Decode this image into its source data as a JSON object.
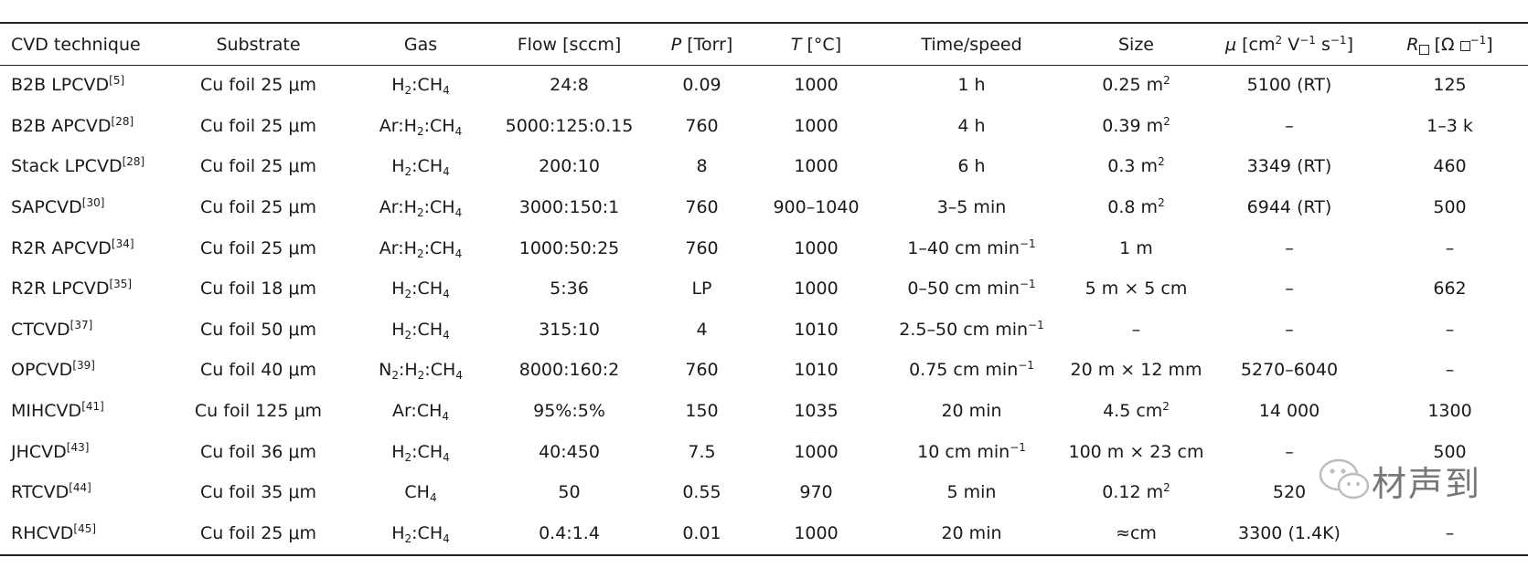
{
  "headers": {
    "technique": "CVD technique",
    "substrate": "Substrate",
    "gas": "Gas",
    "flow": "Flow [sccm]",
    "pressure_sym": "P",
    "pressure_unit": " [Torr]",
    "temp_sym": "T",
    "temp_unit": " [°C]",
    "time": "Time/speed",
    "size": "Size",
    "mobility_sym": "μ",
    "mobility_unit_pre": " [cm",
    "mobility_unit_exp1": "2",
    "mobility_unit_mid1": " V",
    "mobility_unit_exp2": "−1",
    "mobility_unit_mid2": " s",
    "mobility_unit_exp3": "−1",
    "mobility_unit_post": "]",
    "resistance_sym": "R",
    "resistance_unit_pre": " [Ω ",
    "resistance_unit_exp": "−1",
    "resistance_unit_post": "]"
  },
  "rows": [
    {
      "name": "B2B LPCVD",
      "ref": "[5]",
      "substrate": "Cu foil 25 μm",
      "gas": [
        {
          "t": "H"
        },
        {
          "s": "2"
        },
        {
          "t": ":CH"
        },
        {
          "s": "4"
        }
      ],
      "flow": "24:8",
      "p": "0.09",
      "t": "1000",
      "time": [
        {
          "t": "1 h"
        }
      ],
      "size": [
        {
          "t": "0.25 m"
        },
        {
          "u": "2"
        }
      ],
      "mobility": "5100 (RT)",
      "r": "125"
    },
    {
      "name": "B2B APCVD",
      "ref": "[28]",
      "substrate": "Cu foil 25 μm",
      "gas": [
        {
          "t": "Ar:H"
        },
        {
          "s": "2"
        },
        {
          "t": ":CH"
        },
        {
          "s": "4"
        }
      ],
      "flow": "5000:125:0.15",
      "p": "760",
      "t": "1000",
      "time": [
        {
          "t": "4 h"
        }
      ],
      "size": [
        {
          "t": "0.39 m"
        },
        {
          "u": "2"
        }
      ],
      "mobility": "–",
      "r": "1–3 k"
    },
    {
      "name": "Stack LPCVD",
      "ref": "[28]",
      "substrate": "Cu foil 25 μm",
      "gas": [
        {
          "t": "H"
        },
        {
          "s": "2"
        },
        {
          "t": ":CH"
        },
        {
          "s": "4"
        }
      ],
      "flow": "200:10",
      "p": "8",
      "t": "1000",
      "time": [
        {
          "t": "6 h"
        }
      ],
      "size": [
        {
          "t": "0.3 m"
        },
        {
          "u": "2"
        }
      ],
      "mobility": "3349 (RT)",
      "r": "460"
    },
    {
      "name": "SAPCVD",
      "ref": "[30]",
      "substrate": "Cu foil 25 μm",
      "gas": [
        {
          "t": "Ar:H"
        },
        {
          "s": "2"
        },
        {
          "t": ":CH"
        },
        {
          "s": "4"
        }
      ],
      "flow": "3000:150:1",
      "p": "760",
      "t": "900–1040",
      "time": [
        {
          "t": "3–5 min"
        }
      ],
      "size": [
        {
          "t": "0.8 m"
        },
        {
          "u": "2"
        }
      ],
      "mobility": "6944 (RT)",
      "r": "500"
    },
    {
      "name": "R2R APCVD",
      "ref": "[34]",
      "substrate": "Cu foil 25 μm",
      "gas": [
        {
          "t": "Ar:H"
        },
        {
          "s": "2"
        },
        {
          "t": ":CH"
        },
        {
          "s": "4"
        }
      ],
      "flow": "1000:50:25",
      "p": "760",
      "t": "1000",
      "time": [
        {
          "t": "1–40 cm min"
        },
        {
          "u": "−1"
        }
      ],
      "size": [
        {
          "t": "1 m"
        }
      ],
      "mobility": "–",
      "r": "–"
    },
    {
      "name": "R2R LPCVD",
      "ref": "[35]",
      "substrate": "Cu foil 18 μm",
      "gas": [
        {
          "t": "H"
        },
        {
          "s": "2"
        },
        {
          "t": ":CH"
        },
        {
          "s": "4"
        }
      ],
      "flow": "5:36",
      "p": "LP",
      "t": "1000",
      "time": [
        {
          "t": "0–50 cm min"
        },
        {
          "u": "−1"
        }
      ],
      "size": [
        {
          "t": "5 m × 5 cm"
        }
      ],
      "mobility": "–",
      "r": "662"
    },
    {
      "name": "CTCVD",
      "ref": "[37]",
      "substrate": "Cu foil 50 μm",
      "gas": [
        {
          "t": "H"
        },
        {
          "s": "2"
        },
        {
          "t": ":CH"
        },
        {
          "s": "4"
        }
      ],
      "flow": "315:10",
      "p": "4",
      "t": "1010",
      "time": [
        {
          "t": "2.5–50 cm min"
        },
        {
          "u": "−1"
        }
      ],
      "size": [
        {
          "t": "–"
        }
      ],
      "mobility": "–",
      "r": "–"
    },
    {
      "name": "OPCVD",
      "ref": "[39]",
      "substrate": "Cu foil 40 μm",
      "gas": [
        {
          "t": "N"
        },
        {
          "s": "2"
        },
        {
          "t": ":H"
        },
        {
          "s": "2"
        },
        {
          "t": ":CH"
        },
        {
          "s": "4"
        }
      ],
      "flow": "8000:160:2",
      "p": "760",
      "t": "1010",
      "time": [
        {
          "t": "0.75 cm min"
        },
        {
          "u": "−1"
        }
      ],
      "size": [
        {
          "t": "20 m × 12 mm"
        }
      ],
      "mobility": "5270–6040",
      "r": "–"
    },
    {
      "name": "MIHCVD",
      "ref": "[41]",
      "substrate": "Cu foil 125 μm",
      "gas": [
        {
          "t": "Ar:CH"
        },
        {
          "s": "4"
        }
      ],
      "flow": "95%:5%",
      "p": "150",
      "t": "1035",
      "time": [
        {
          "t": "20 min"
        }
      ],
      "size": [
        {
          "t": "4.5 cm"
        },
        {
          "u": "2"
        }
      ],
      "mobility": "14 000",
      "r": "1300"
    },
    {
      "name": "JHCVD",
      "ref": "[43]",
      "substrate": "Cu foil 36 μm",
      "gas": [
        {
          "t": "H"
        },
        {
          "s": "2"
        },
        {
          "t": ":CH"
        },
        {
          "s": "4"
        }
      ],
      "flow": "40:450",
      "p": "7.5",
      "t": "1000",
      "time": [
        {
          "t": "10 cm min"
        },
        {
          "u": "−1"
        }
      ],
      "size": [
        {
          "t": "100 m × 23 cm"
        }
      ],
      "mobility": "–",
      "r": "500"
    },
    {
      "name": "RTCVD",
      "ref": "[44]",
      "substrate": "Cu foil 35 μm",
      "gas": [
        {
          "t": "CH"
        },
        {
          "s": "4"
        }
      ],
      "flow": "50",
      "p": "0.55",
      "t": "970",
      "time": [
        {
          "t": "5 min"
        }
      ],
      "size": [
        {
          "t": "0.12 m"
        },
        {
          "u": "2"
        }
      ],
      "mobility": "520",
      "r": ""
    },
    {
      "name": "RHCVD",
      "ref": "[45]",
      "substrate": "Cu foil 25 μm",
      "gas": [
        {
          "t": "H"
        },
        {
          "s": "2"
        },
        {
          "t": ":CH"
        },
        {
          "s": "4"
        }
      ],
      "flow": "0.4:1.4",
      "p": "0.01",
      "t": "1000",
      "time": [
        {
          "t": "20 min"
        }
      ],
      "size": [
        {
          "t": "≈cm"
        }
      ],
      "mobility": "3300 (1.4K)",
      "r": "–"
    }
  ],
  "watermark": {
    "text": "材声到",
    "icon": "wechat-icon"
  }
}
